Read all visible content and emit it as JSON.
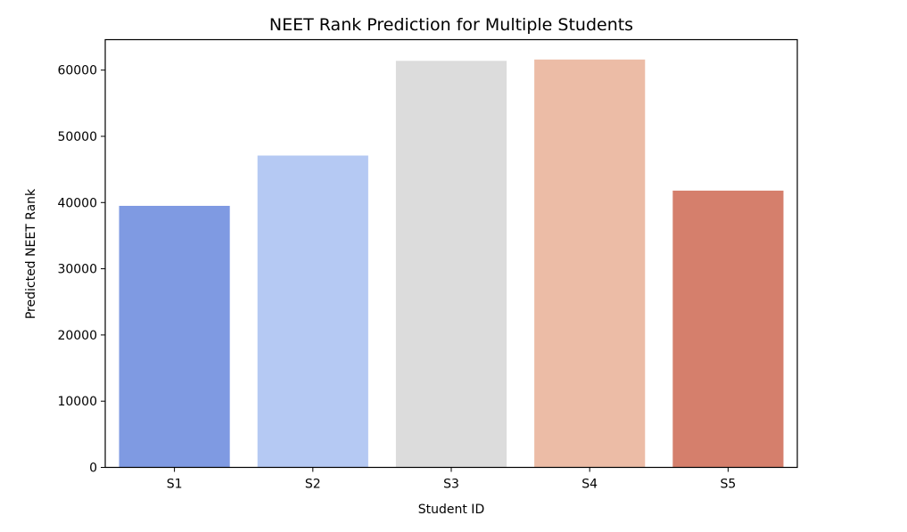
{
  "chart_data": {
    "type": "bar",
    "title": "NEET Rank Prediction for Multiple Students",
    "xlabel": "Student ID",
    "ylabel": "Predicted NEET Rank",
    "categories": [
      "S1",
      "S2",
      "S3",
      "S4",
      "S5"
    ],
    "values": [
      39500,
      47100,
      61400,
      61600,
      41800
    ],
    "colors": [
      "#7f9ae2",
      "#b5c9f3",
      "#dcdcdc",
      "#ecbca6",
      "#d57f6c"
    ],
    "ylim": [
      0,
      64600
    ],
    "yticks": [
      0,
      10000,
      20000,
      30000,
      40000,
      50000,
      60000
    ],
    "ytick_labels": [
      "0",
      "10000",
      "20000",
      "30000",
      "40000",
      "50000",
      "60000"
    ],
    "grid": false,
    "legend": "none"
  }
}
